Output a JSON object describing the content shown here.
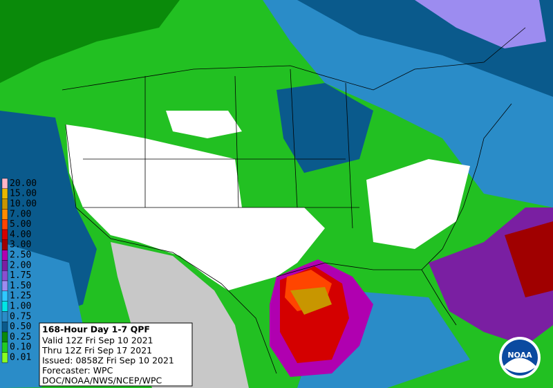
{
  "map": {
    "legend": [
      {
        "label": "20.00",
        "color": "#ffb6c8"
      },
      {
        "label": "15.00",
        "color": "#e6b800"
      },
      {
        "label": "10.00",
        "color": "#c89600"
      },
      {
        "label": "7.00",
        "color": "#ff8c00"
      },
      {
        "label": "5.00",
        "color": "#ff4500"
      },
      {
        "label": "4.00",
        "color": "#d40000"
      },
      {
        "label": "3.00",
        "color": "#a00000"
      },
      {
        "label": "2.50",
        "color": "#b000b0"
      },
      {
        "label": "2.00",
        "color": "#7a1fa2"
      },
      {
        "label": "1.75",
        "color": "#8a4fd0"
      },
      {
        "label": "1.50",
        "color": "#9c8cf0"
      },
      {
        "label": "1.25",
        "color": "#30c8ff"
      },
      {
        "label": "1.00",
        "color": "#00e6e6"
      },
      {
        "label": "0.75",
        "color": "#2a8cc8"
      },
      {
        "label": "0.50",
        "color": "#0a5a8c"
      },
      {
        "label": "0.25",
        "color": "#0a8a0a"
      },
      {
        "label": "0.10",
        "color": "#22cc22"
      },
      {
        "label": "0.01",
        "color": "#88ff22"
      }
    ],
    "info": {
      "title": "168-Hour Day 1-7 QPF",
      "lines": [
        "Valid 12Z Fri Sep 10 2021",
        "Thru 12Z Fri Sep 17 2021",
        "Issued: 0858Z Fri Sep 10 2021",
        "Forecaster: WPC",
        "DOC/NOAA/NWS/NCEP/WPC"
      ]
    },
    "logo": "NOAA"
  }
}
